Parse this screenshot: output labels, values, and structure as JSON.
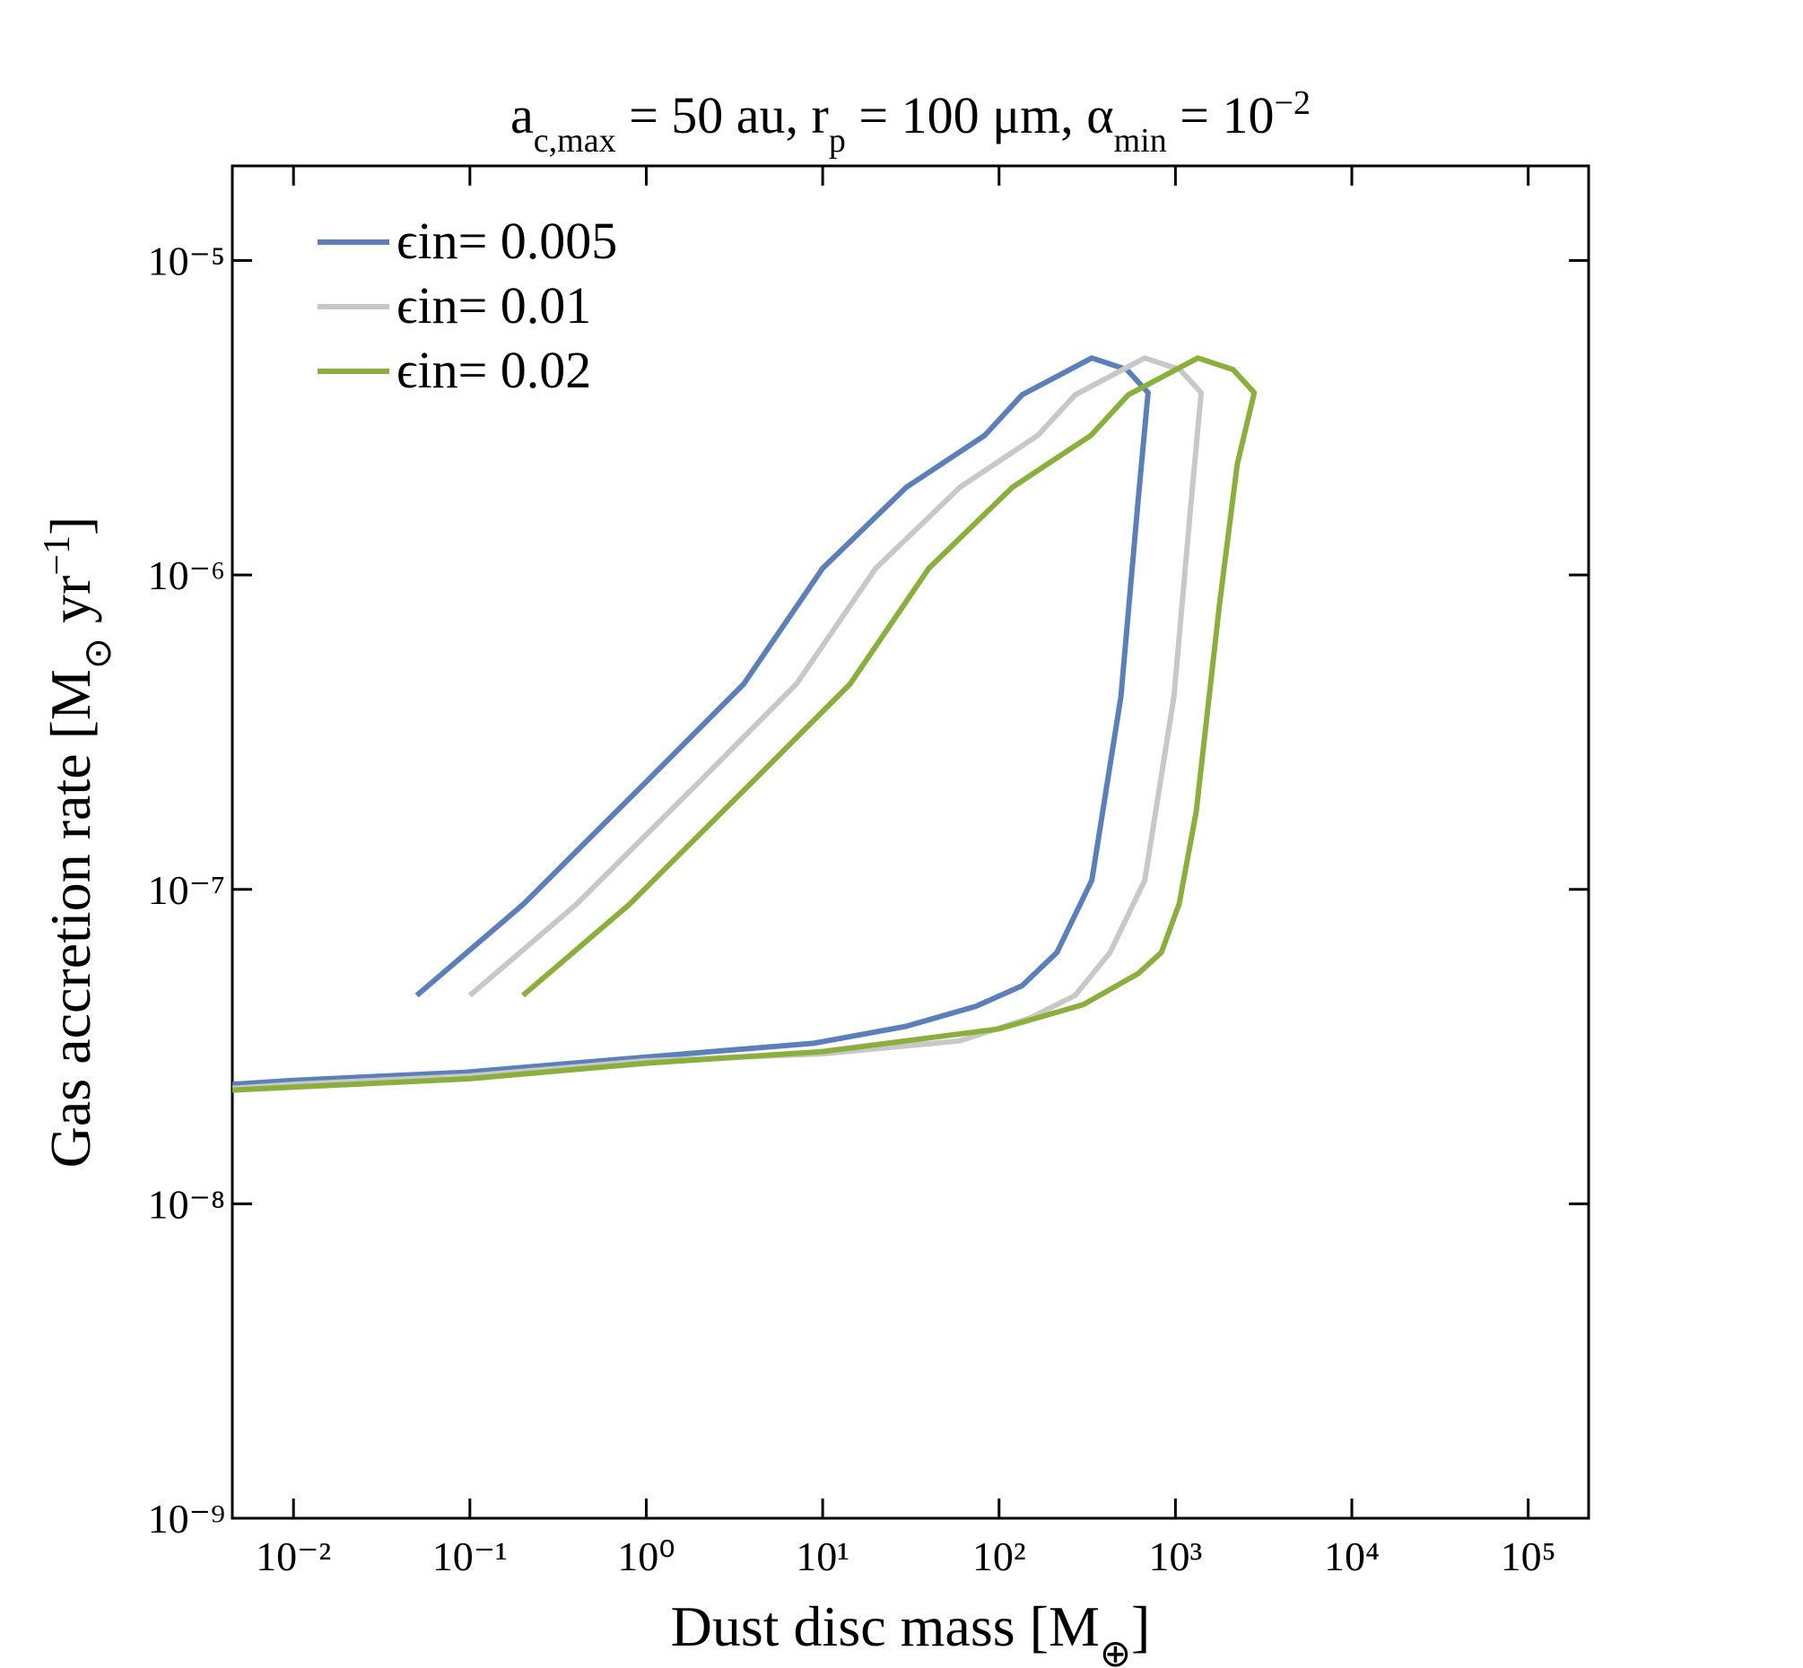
{
  "chart_data": {
    "type": "line",
    "title": [
      "a",
      "c,max",
      " = 50 au, r",
      "p",
      " = 100 μm, α",
      "min",
      " = 10",
      "−2"
    ],
    "x_label": [
      "Dust disc mass [M",
      "⊕",
      "]"
    ],
    "y_label": [
      "Gas accretion rate [M",
      "⊙",
      " yr",
      "−1",
      "]"
    ],
    "xscale": "log",
    "yscale": "log",
    "xlim": [
      0.0045,
      220000
    ],
    "ylim": [
      1e-09,
      2e-05
    ],
    "xticks": [
      {
        "value": 0.01,
        "label": "10⁻²"
      },
      {
        "value": 0.1,
        "label": "10⁻¹"
      },
      {
        "value": 1,
        "label": "10⁰"
      },
      {
        "value": 10,
        "label": "10¹"
      },
      {
        "value": 100,
        "label": "10²"
      },
      {
        "value": 1000,
        "label": "10³"
      },
      {
        "value": 10000,
        "label": "10⁴"
      },
      {
        "value": 100000,
        "label": "10⁵"
      }
    ],
    "yticks": [
      {
        "value": 1e-09,
        "label": "10⁻⁹"
      },
      {
        "value": 1e-08,
        "label": "10⁻⁸"
      },
      {
        "value": 1e-07,
        "label": "10⁻⁷"
      },
      {
        "value": 1e-06,
        "label": "10⁻⁶"
      },
      {
        "value": 1e-05,
        "label": "10⁻⁵"
      }
    ],
    "legend": "upper left",
    "grid": false,
    "series": [
      {
        "name": "ϵin= 0.005",
        "color": "#5b7fb8",
        "x": [
          0.05,
          0.2,
          1,
          3.57,
          10,
          29.8,
          83,
          135,
          336,
          530,
          700,
          615,
          491,
          336,
          213,
          135,
          74,
          29.8,
          8.85,
          1,
          0.094,
          0.01,
          0.0045
        ],
        "values": [
          4.6e-08,
          8.95e-08,
          2.2e-07,
          4.5e-07,
          1.05e-06,
          1.9e-06,
          2.78e-06,
          3.74e-06,
          4.9e-06,
          4.5e-06,
          3.8e-06,
          1.74e-06,
          4.1e-07,
          1.07e-07,
          6.3e-08,
          4.94e-08,
          4.25e-08,
          3.67e-08,
          3.24e-08,
          2.93e-08,
          2.62e-08,
          2.47e-08,
          2.4e-08
        ]
      },
      {
        "name": "ϵin= 0.01",
        "color": "#c8c8c8",
        "x": [
          0.1,
          0.4,
          2,
          7.1,
          20,
          60,
          166,
          270,
          670,
          1060,
          1400,
          1230,
          980,
          670,
          426,
          270,
          150,
          60,
          10,
          1,
          0.1,
          0.01,
          0.0045
        ],
        "values": [
          4.6e-08,
          8.95e-08,
          2.2e-07,
          4.5e-07,
          1.05e-06,
          1.9e-06,
          2.78e-06,
          3.74e-06,
          4.9e-06,
          4.5e-06,
          3.8e-06,
          1.74e-06,
          4.1e-07,
          1.07e-07,
          6.3e-08,
          4.6e-08,
          3.9e-08,
          3.3e-08,
          3e-08,
          2.85e-08,
          2.55e-08,
          2.4e-08,
          2.33e-08
        ]
      },
      {
        "name": "ϵin= 0.02",
        "color": "#8aaf3c",
        "x": [
          0.2,
          0.8,
          4,
          14.3,
          40,
          119,
          332,
          540,
          1340,
          2120,
          2800,
          2240,
          1780,
          1312,
          1050,
          832,
          615,
          300,
          100,
          10,
          1,
          0.1,
          0.01,
          0.0045
        ],
        "values": [
          4.6e-08,
          8.95e-08,
          2.2e-07,
          4.5e-07,
          1.05e-06,
          1.9e-06,
          2.78e-06,
          3.74e-06,
          4.9e-06,
          4.5e-06,
          3.8e-06,
          2.25e-06,
          8.1e-07,
          1.77e-07,
          9e-08,
          6.3e-08,
          5.4e-08,
          4.3e-08,
          3.6e-08,
          3.05e-08,
          2.8e-08,
          2.5e-08,
          2.35e-08,
          2.3e-08
        ]
      }
    ]
  }
}
